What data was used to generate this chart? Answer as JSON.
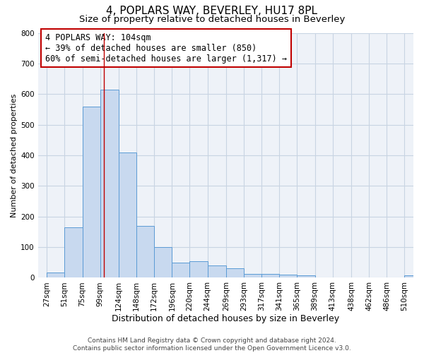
{
  "title": "4, POPLARS WAY, BEVERLEY, HU17 8PL",
  "subtitle": "Size of property relative to detached houses in Beverley",
  "xlabel": "Distribution of detached houses by size in Beverley",
  "ylabel": "Number of detached properties",
  "bar_labels": [
    "27sqm",
    "51sqm",
    "75sqm",
    "99sqm",
    "124sqm",
    "148sqm",
    "172sqm",
    "196sqm",
    "220sqm",
    "244sqm",
    "269sqm",
    "293sqm",
    "317sqm",
    "341sqm",
    "365sqm",
    "389sqm",
    "413sqm",
    "438sqm",
    "462sqm",
    "486sqm",
    "510sqm"
  ],
  "bar_values": [
    18,
    165,
    560,
    615,
    410,
    170,
    100,
    50,
    55,
    40,
    30,
    12,
    13,
    10,
    8,
    0,
    0,
    0,
    0,
    0,
    8
  ],
  "bar_color": "#c8d9ef",
  "bar_edge_color": "#5b9bd5",
  "grid_color": "#c8d4e3",
  "background_color": "#eef2f8",
  "annotation_box_text": "4 POPLARS WAY: 104sqm\n← 39% of detached houses are smaller (850)\n60% of semi-detached houses are larger (1,317) →",
  "annotation_box_edge_color": "#c00000",
  "annotation_box_facecolor": "#ffffff",
  "vline_x": 104,
  "vline_color": "#c00000",
  "ylim": [
    0,
    800
  ],
  "xlim_left": 15,
  "xlim_right": 522,
  "footnote": "Contains HM Land Registry data © Crown copyright and database right 2024.\nContains public sector information licensed under the Open Government Licence v3.0.",
  "title_fontsize": 11,
  "subtitle_fontsize": 9.5,
  "xlabel_fontsize": 9,
  "ylabel_fontsize": 8,
  "tick_fontsize": 7.5,
  "annotation_fontsize": 8.5,
  "footnote_fontsize": 6.5
}
